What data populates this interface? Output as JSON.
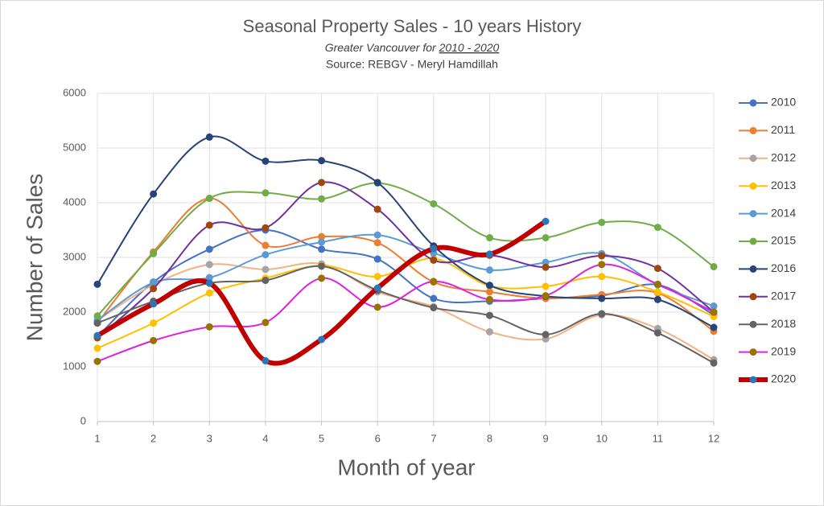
{
  "chart_data": {
    "type": "line",
    "title": "Seasonal Property Sales - 10 years History",
    "subtitle": {
      "lead": "Greater Vancouver for",
      "underlined": "2010 - 2020"
    },
    "source": "Source: REBGV  - Meryl Hamdillah",
    "x_label": "Month of year",
    "y_label": "Number of  Sales",
    "x": [
      1,
      2,
      3,
      4,
      5,
      6,
      7,
      8,
      9,
      10,
      11,
      12
    ],
    "xlim": [
      1,
      12
    ],
    "xticks": [
      1,
      2,
      3,
      4,
      5,
      6,
      7,
      8,
      9,
      10,
      11,
      12
    ],
    "ylim": [
      0,
      6000
    ],
    "yticks": [
      0,
      1000,
      2000,
      3000,
      4000,
      5000,
      6000
    ],
    "grid": true,
    "smooth": true,
    "legend": "right",
    "series": [
      {
        "name": "2010",
        "color": "#4472c4",
        "marker_color": "#4472c4",
        "values": [
          1550,
          2550,
          3150,
          3500,
          3150,
          2970,
          2250,
          2200,
          2250,
          2300,
          2500,
          1950
        ]
      },
      {
        "name": "2011",
        "color": "#ed7d31",
        "marker_color": "#ed7d31",
        "values": [
          1800,
          3100,
          4080,
          3220,
          3380,
          3270,
          2550,
          2370,
          2250,
          2320,
          2350,
          1650
        ]
      },
      {
        "name": "2012",
        "color": "#f4b183",
        "marker_color": "#a5a5a5",
        "values": [
          1850,
          2500,
          2870,
          2780,
          2880,
          2370,
          2100,
          1640,
          1510,
          1950,
          1700,
          1130
        ]
      },
      {
        "name": "2013",
        "color": "#ffc000",
        "marker_color": "#ffc000",
        "values": [
          1340,
          1800,
          2350,
          2620,
          2850,
          2650,
          2980,
          2480,
          2470,
          2650,
          2370,
          1920
        ]
      },
      {
        "name": "2014",
        "color": "#5b9bd5",
        "marker_color": "#5b9bd5",
        "values": [
          1850,
          2540,
          2630,
          3050,
          3280,
          3410,
          3080,
          2770,
          2910,
          3070,
          2500,
          2110
        ]
      },
      {
        "name": "2015",
        "color": "#70ad47",
        "marker_color": "#70ad47",
        "values": [
          1930,
          3070,
          4080,
          4180,
          4070,
          4360,
          3980,
          3360,
          3360,
          3640,
          3550,
          2830
        ]
      },
      {
        "name": "2016",
        "color": "#264478",
        "marker_color": "#264478",
        "values": [
          2510,
          4160,
          5200,
          4760,
          4770,
          4370,
          3210,
          2490,
          2290,
          2250,
          2230,
          1720
        ]
      },
      {
        "name": "2017",
        "color": "#7030a0",
        "marker_color": "#9e480e",
        "values": [
          1530,
          2430,
          3590,
          3540,
          4370,
          3880,
          2950,
          3040,
          2820,
          3030,
          2800,
          2000
        ]
      },
      {
        "name": "2018",
        "color": "#636363",
        "marker_color": "#636363",
        "values": [
          1800,
          2200,
          2530,
          2580,
          2840,
          2400,
          2080,
          1940,
          1590,
          1970,
          1620,
          1070
        ]
      },
      {
        "name": "2019",
        "color": "#e020e0",
        "marker_color": "#997300",
        "values": [
          1100,
          1480,
          1730,
          1810,
          2620,
          2090,
          2560,
          2230,
          2300,
          2870,
          2510,
          2000
        ]
      },
      {
        "name": "2020",
        "color": "#c00000",
        "marker_color": "#2e75b6",
        "width": 6,
        "values": [
          1570,
          2150,
          2530,
          1110,
          1500,
          2440,
          3160,
          3060,
          3660,
          null,
          null,
          null
        ]
      }
    ]
  }
}
